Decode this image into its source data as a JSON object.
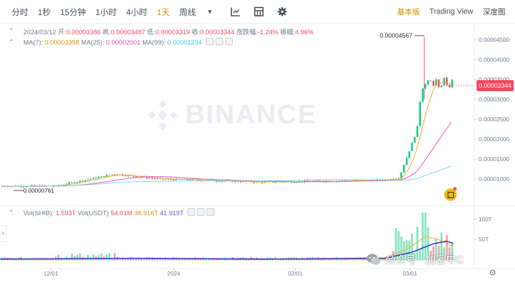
{
  "toolbar": {
    "timeframes": [
      "分时",
      "1秒",
      "15分钟",
      "1小时",
      "4小时",
      "1天",
      "周线"
    ],
    "active_timeframe": "1天",
    "views": [
      "基本版",
      "Trading View",
      "深度图"
    ],
    "active_view": "基本版"
  },
  "ohlc": {
    "date": "2024/03/12",
    "open_label": "开:",
    "open": "0.00003386",
    "high_label": "高:",
    "high": "0.00003487",
    "low_label": "低:",
    "low": "0.00003319",
    "close_label": "收:",
    "close": "0.00003344",
    "change_label": "涨跌幅:",
    "change": "-1.24%",
    "amplitude_label": "振幅:",
    "amplitude": "4.96%"
  },
  "ma": {
    "ma7_label": "MA(7):",
    "ma7": "0.00003358",
    "ma25_label": "MA(25):",
    "ma25": "0.00002001",
    "ma99_label": "MA(99):",
    "ma99": "0.00001234"
  },
  "volume": {
    "shib_label": "Vol(SHIB):",
    "shib": "1.593T",
    "usdt_label": "Vol(USDT)",
    "usdt": "54.01M",
    "ma5": "38.916T",
    "ma10": "41.919T"
  },
  "price_axis": [
    "0.00004500",
    "0.00004000",
    "0.00003500",
    "0.00003000",
    "0.00002500",
    "0.00002000",
    "0.00001500",
    "0.00001000"
  ],
  "volume_axis": [
    "100T",
    "50T"
  ],
  "time_axis": [
    "12/01",
    "2024",
    "02/01",
    "03/01"
  ],
  "current_price": "0.00003344",
  "high_marker": "0.00004567",
  "low_marker": "0.00000761",
  "watermark": "BINANCE",
  "wechat_label": "公众号 · 加密中C",
  "colors": {
    "up": "#0ecb81",
    "down": "#f6465d",
    "active": "#c99400",
    "ma7": "#f5a623",
    "ma25": "#e056b8",
    "ma99": "#7fd3f0"
  },
  "chart_data": {
    "type": "candlestick",
    "x": [
      "2023-11-20",
      "2024-01-01",
      "2024-01-31",
      "2024-02-27",
      "2024-03-04",
      "2024-03-05",
      "2024-03-12"
    ],
    "close": [
      8.3e-06,
      1.06e-05,
      9.3e-06,
      1.15e-05,
      3.1e-05,
      3.5e-05,
      3.344e-05
    ],
    "ylim": [
      7.5e-06,
      4.65e-05
    ],
    "high": 4.567e-05,
    "low": 7.61e-06
  }
}
